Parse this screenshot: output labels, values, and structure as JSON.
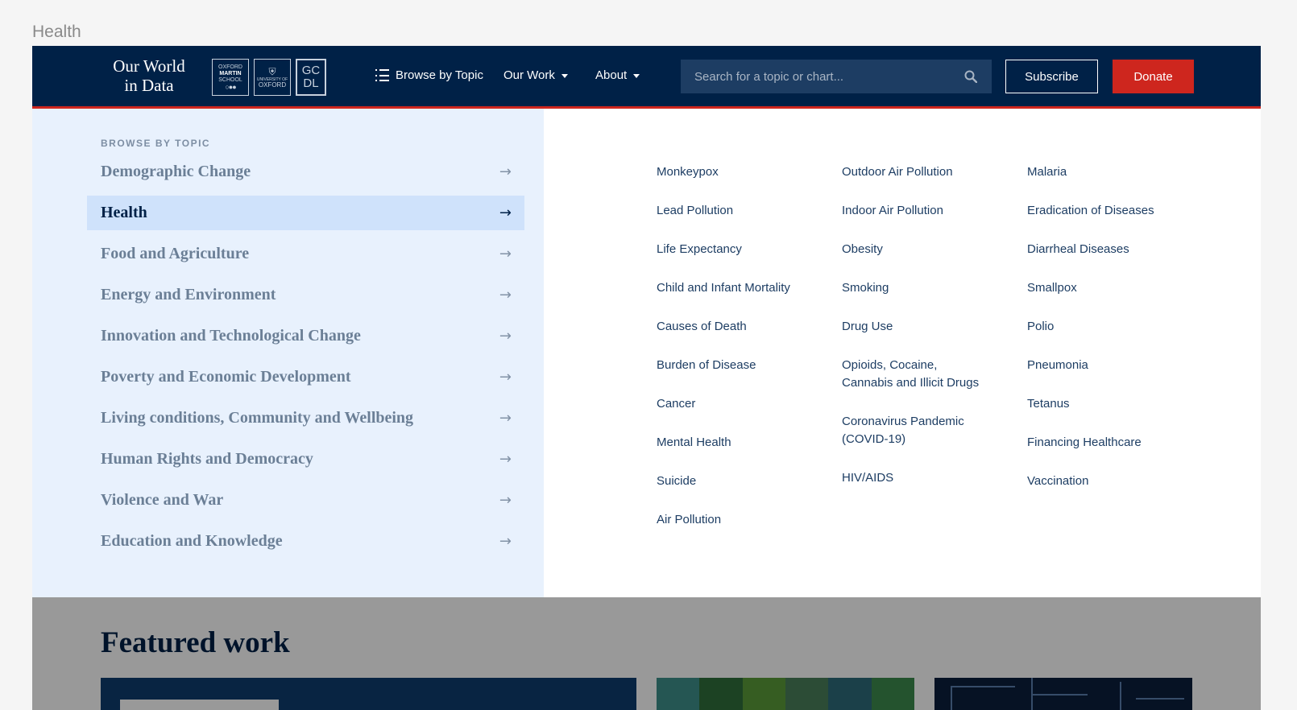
{
  "frame_label": "Health",
  "header": {
    "logo_line1": "Our World",
    "logo_line2": "in Data",
    "partners": {
      "oms_1": "OXFORD",
      "oms_2": "MARTIN",
      "oms_3": "SCHOOL",
      "uo_1": "UNIVERSITY OF",
      "uo_2": "OXFORD",
      "gcdl_1": "GC",
      "gcdl_2": "DL"
    },
    "nav": {
      "browse": "Browse by Topic",
      "our_work": "Our Work",
      "about": "About"
    },
    "search_placeholder": "Search for a topic or chart...",
    "subscribe": "Subscribe",
    "donate": "Donate"
  },
  "menu": {
    "heading": "BROWSE BY TOPIC",
    "topics": [
      "Demographic Change",
      "Health",
      "Food and Agriculture",
      "Energy and Environment",
      "Innovation and Technological Change",
      "Poverty and Economic Development",
      "Living conditions, Community and Wellbeing",
      "Human Rights and Democracy",
      "Violence and War",
      "Education and Knowledge"
    ],
    "active_topic": "Health",
    "subtopics_col1": [
      "Monkeypox",
      "Lead Pollution",
      "Life Expectancy",
      "Child and Infant Mortality",
      "Causes of Death",
      "Burden of Disease",
      "Cancer",
      "Mental Health",
      "Suicide",
      "Air Pollution"
    ],
    "subtopics_col2": [
      "Outdoor Air Pollution",
      "Indoor Air Pollution",
      "Obesity",
      "Smoking",
      "Drug Use",
      "Opioids, Cocaine, Cannabis and Illicit Drugs",
      "Coronavirus Pandemic (COVID-19)",
      "HIV/AIDS"
    ],
    "subtopics_col3": [
      "Malaria",
      "Eradication of Diseases",
      "Diarrheal Diseases",
      "Smallpox",
      "Polio",
      "Pneumonia",
      "Tetanus",
      "Financing Healthcare",
      "Vaccination"
    ]
  },
  "featured": {
    "title": "Featured work"
  },
  "colors": {
    "header_bg": "#002147",
    "accent_red": "#ce261e",
    "menu_panel_bg": "#e8f1fd",
    "active_topic_bg": "#cfe2fb"
  }
}
